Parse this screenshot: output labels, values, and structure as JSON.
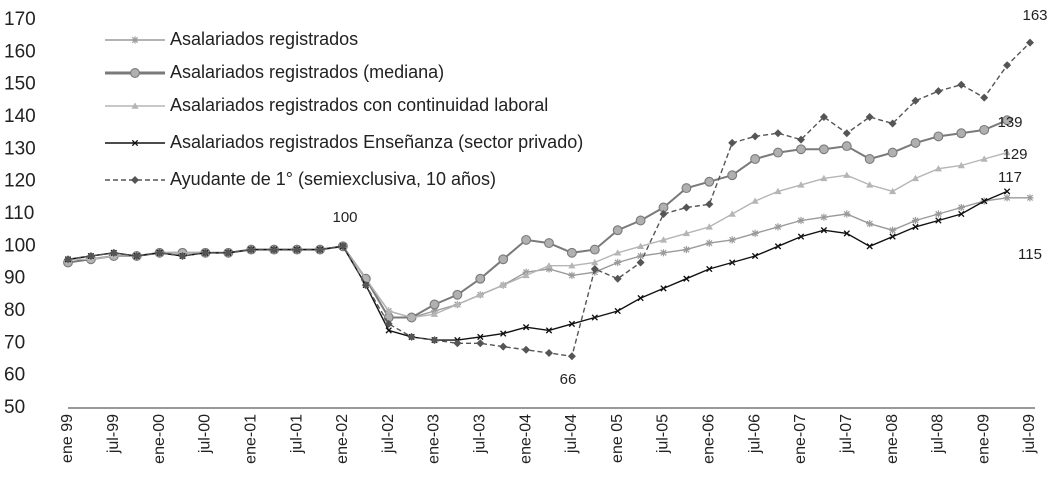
{
  "chart_data": {
    "type": "line",
    "categories": [
      "ene 99",
      null,
      "jul-99",
      null,
      "ene-00",
      null,
      "jul-00",
      null,
      "ene-01",
      null,
      "jul-01",
      null,
      "ene-02",
      null,
      "jul-02",
      null,
      "ene-03",
      null,
      "jul-03",
      null,
      "ene-04",
      null,
      "jul-04",
      null,
      "ene 05",
      null,
      "jul-05",
      null,
      "ene-06",
      null,
      "jul-06",
      null,
      "ene-07",
      null,
      "jul-07",
      null,
      "ene-08",
      null,
      "jul-08",
      null,
      "ene-09",
      null,
      "jul-09"
    ],
    "series": [
      {
        "name": "Asalariados registrados",
        "color": "#9a9a9a",
        "marker": "star",
        "values": [
          95,
          96,
          97,
          97,
          98,
          97,
          98,
          98,
          99,
          99,
          99,
          99,
          100,
          90,
          80,
          78,
          80,
          82,
          85,
          88,
          92,
          93,
          91,
          92,
          95,
          97,
          98,
          99,
          101,
          102,
          104,
          106,
          108,
          109,
          110,
          107,
          105,
          108,
          110,
          112,
          114,
          115,
          115
        ]
      },
      {
        "name": "Asalariados registrados (mediana)",
        "color": "#7a7a7a",
        "marker": "circle",
        "values": [
          95,
          96,
          97,
          97,
          98,
          98,
          98,
          98,
          99,
          99,
          99,
          99,
          100,
          90,
          78,
          78,
          82,
          85,
          90,
          96,
          102,
          101,
          98,
          99,
          105,
          108,
          112,
          118,
          120,
          122,
          127,
          129,
          130,
          130,
          131,
          127,
          129,
          132,
          134,
          135,
          136,
          139,
          null
        ]
      },
      {
        "name": "Asalariados registrados con continuidad laboral",
        "color": "#b5b5b5",
        "marker": "triangle",
        "values": [
          96,
          96,
          97,
          97,
          98,
          98,
          98,
          98,
          99,
          99,
          99,
          99,
          100,
          90,
          80,
          78,
          79,
          82,
          85,
          88,
          91,
          94,
          94,
          95,
          98,
          100,
          102,
          104,
          106,
          110,
          114,
          117,
          119,
          121,
          122,
          119,
          117,
          121,
          124,
          125,
          127,
          129,
          null
        ]
      },
      {
        "name": "Asalariados registrados Enseñanza (sector privado)",
        "color": "#111111",
        "marker": "cross",
        "values": [
          96,
          97,
          98,
          97,
          98,
          97,
          98,
          98,
          99,
          99,
          99,
          99,
          100,
          88,
          74,
          72,
          71,
          71,
          72,
          73,
          75,
          74,
          76,
          78,
          80,
          84,
          87,
          90,
          93,
          95,
          97,
          100,
          103,
          105,
          104,
          100,
          103,
          106,
          108,
          110,
          114,
          117,
          null
        ]
      },
      {
        "name": "Ayudante de 1° (semiexclusiva, 10 años)",
        "color": "#555555",
        "marker": "diamond",
        "dash": true,
        "values": [
          96,
          97,
          98,
          97,
          98,
          97,
          98,
          98,
          99,
          99,
          99,
          99,
          100,
          88,
          76,
          72,
          71,
          70,
          70,
          69,
          68,
          67,
          66,
          93,
          90,
          95,
          110,
          112,
          113,
          132,
          134,
          135,
          133,
          140,
          135,
          140,
          138,
          145,
          148,
          150,
          146,
          156,
          163
        ]
      }
    ],
    "annotations": [
      "100",
      "66",
      "163",
      "139",
      "129",
      "117",
      "115"
    ],
    "ylim": [
      50,
      170
    ],
    "yticks": [
      50,
      60,
      70,
      80,
      90,
      100,
      110,
      120,
      130,
      140,
      150,
      160,
      170
    ],
    "grid": false
  }
}
